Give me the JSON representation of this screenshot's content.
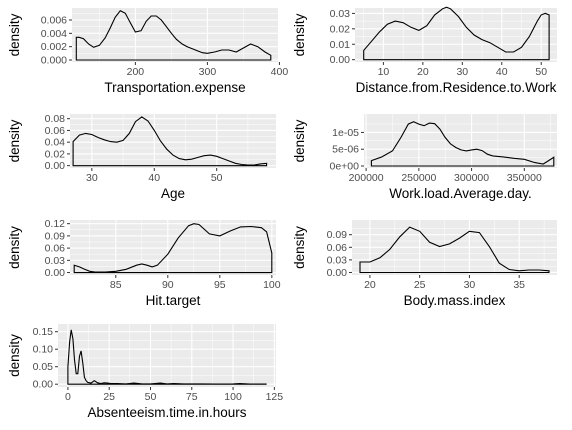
{
  "chart_data": [
    {
      "type": "area",
      "xlabel": "Transportation.expense",
      "ylabel": "density",
      "xlim": [
        112,
        398
      ],
      "ylim": [
        -0.0003,
        0.0078
      ],
      "xticks": [
        200,
        300,
        400
      ],
      "xtick_labels": [
        "200",
        "300",
        "400"
      ],
      "yticks": [
        0,
        0.002,
        0.004,
        0.006
      ],
      "ytick_labels": [
        "0.000",
        "0.002",
        "0.004",
        "0.006"
      ],
      "x": [
        118,
        122,
        128,
        135,
        142,
        150,
        158,
        165,
        172,
        179,
        186,
        193,
        200,
        208,
        215,
        222,
        229,
        236,
        243,
        250,
        257,
        265,
        272,
        279,
        286,
        293,
        300,
        310,
        320,
        330,
        340,
        350,
        360,
        370,
        380,
        388
      ],
      "y": [
        0.0034,
        0.0034,
        0.0032,
        0.0024,
        0.0019,
        0.0022,
        0.0033,
        0.0048,
        0.0064,
        0.0074,
        0.007,
        0.0056,
        0.0042,
        0.0044,
        0.0058,
        0.0066,
        0.0066,
        0.006,
        0.005,
        0.004,
        0.0031,
        0.0024,
        0.002,
        0.0017,
        0.0014,
        0.0011,
        0.001,
        0.0012,
        0.0015,
        0.0015,
        0.0012,
        0.0018,
        0.0024,
        0.002,
        0.0012,
        0.0007
      ],
      "grid": true
    },
    {
      "type": "area",
      "xlabel": "Distance.from.Residence.to.Work",
      "ylabel": "density",
      "xlim": [
        2.8,
        54
      ],
      "ylim": [
        -0.0015,
        0.0335
      ],
      "xticks": [
        10,
        20,
        30,
        40,
        50
      ],
      "xtick_labels": [
        "10",
        "20",
        "30",
        "40",
        "50"
      ],
      "yticks": [
        0,
        0.01,
        0.02,
        0.03
      ],
      "ytick_labels": [
        "0.00",
        "0.01",
        "0.02",
        "0.03"
      ],
      "x": [
        5,
        7,
        9,
        11,
        13,
        15,
        17,
        19,
        21,
        23,
        25,
        26,
        27,
        29,
        31,
        33,
        35,
        37,
        39,
        41,
        43,
        45,
        47,
        49,
        50,
        51,
        52
      ],
      "y": [
        0.006,
        0.012,
        0.018,
        0.023,
        0.025,
        0.024,
        0.021,
        0.019,
        0.022,
        0.029,
        0.033,
        0.034,
        0.033,
        0.028,
        0.021,
        0.016,
        0.013,
        0.011,
        0.008,
        0.005,
        0.005,
        0.008,
        0.015,
        0.025,
        0.029,
        0.03,
        0.029
      ],
      "grid": true
    },
    {
      "type": "area",
      "xlabel": "Age",
      "ylabel": "density",
      "xlim": [
        26.5,
        59.5
      ],
      "ylim": [
        -0.004,
        0.088
      ],
      "xticks": [
        30,
        40,
        50
      ],
      "xtick_labels": [
        "30",
        "40",
        "50"
      ],
      "yticks": [
        0,
        0.02,
        0.04,
        0.06,
        0.08
      ],
      "ytick_labels": [
        "0.00",
        "0.02",
        "0.04",
        "0.06",
        "0.08"
      ],
      "x": [
        27,
        28,
        29,
        30,
        31,
        32,
        33,
        34,
        35,
        36,
        37,
        38,
        39,
        40,
        41,
        42,
        43,
        44,
        45,
        46,
        47,
        48,
        49,
        50,
        51,
        52,
        53,
        54,
        55,
        56,
        57,
        58
      ],
      "y": [
        0.041,
        0.052,
        0.055,
        0.053,
        0.048,
        0.044,
        0.041,
        0.04,
        0.043,
        0.055,
        0.075,
        0.083,
        0.076,
        0.06,
        0.042,
        0.028,
        0.018,
        0.012,
        0.01,
        0.011,
        0.014,
        0.017,
        0.018,
        0.016,
        0.012,
        0.008,
        0.004,
        0.002,
        0.001,
        0.001,
        0.003,
        0.004
      ],
      "grid": true
    },
    {
      "type": "area",
      "xlabel": "Work.load.Average.day.",
      "ylabel": "density",
      "xlim": [
        198000,
        381000
      ],
      "ylim": [
        -6e-07,
        1.55e-05
      ],
      "xticks": [
        200000,
        250000,
        300000,
        350000
      ],
      "xtick_labels": [
        "200000",
        "250000",
        "300000",
        "350000"
      ],
      "yticks": [
        0,
        5e-06,
        1e-05
      ],
      "ytick_labels": [
        "0e+00",
        "5e-06",
        "1e-05"
      ],
      "x": [
        205000,
        215000,
        225000,
        233000,
        240000,
        245000,
        250000,
        255000,
        260000,
        265000,
        270000,
        275000,
        280000,
        285000,
        290000,
        295000,
        300000,
        305000,
        310000,
        315000,
        320000,
        330000,
        340000,
        350000,
        360000,
        368000,
        374000,
        378000
      ],
      "y": [
        1.6e-06,
        2.7e-06,
        4.5e-06,
        8.5e-06,
        1.25e-05,
        1.32e-05,
        1.25e-05,
        1.2e-05,
        1.28e-05,
        1.26e-05,
        1.1e-05,
        8.5e-06,
        6.6e-06,
        5.5e-06,
        4.8e-06,
        4.5e-06,
        4.8e-06,
        5e-06,
        4.6e-06,
        3.5e-06,
        3e-06,
        2.7e-06,
        2.3e-06,
        2e-06,
        1e-06,
        6e-07,
        1.8e-06,
        2.6e-06
      ],
      "grid": true
    },
    {
      "type": "area",
      "xlabel": "Hit.target",
      "ylabel": "density",
      "xlim": [
        80.6,
        100.4
      ],
      "ylim": [
        -0.006,
        0.129
      ],
      "xticks": [
        85,
        90,
        95,
        100
      ],
      "xtick_labels": [
        "85",
        "90",
        "95",
        "100"
      ],
      "yticks": [
        0,
        0.03,
        0.06,
        0.09,
        0.12
      ],
      "ytick_labels": [
        "0.00",
        "0.03",
        "0.06",
        "0.09",
        "0.12"
      ],
      "x": [
        81,
        81.5,
        82,
        82.5,
        83,
        84,
        85,
        86,
        87,
        87.5,
        88,
        88.5,
        89,
        90,
        91,
        92,
        92.5,
        93,
        94,
        95,
        96,
        97,
        98,
        99,
        99.5,
        100
      ],
      "y": [
        0.018,
        0.014,
        0.008,
        0.003,
        0.001,
        0.001,
        0.003,
        0.008,
        0.018,
        0.021,
        0.018,
        0.014,
        0.018,
        0.045,
        0.085,
        0.115,
        0.12,
        0.118,
        0.095,
        0.09,
        0.102,
        0.112,
        0.113,
        0.11,
        0.1,
        0.048
      ],
      "grid": true
    },
    {
      "type": "area",
      "xlabel": "Body.mass.index",
      "ylabel": "density",
      "xlim": [
        18.2,
        38.8
      ],
      "ylim": [
        -0.006,
        0.125
      ],
      "xticks": [
        20,
        25,
        30,
        35
      ],
      "xtick_labels": [
        "20",
        "25",
        "30",
        "35"
      ],
      "yticks": [
        0,
        0.03,
        0.06,
        0.09
      ],
      "ytick_labels": [
        "0.00",
        "0.03",
        "0.06",
        "0.09"
      ],
      "x": [
        19,
        20,
        21,
        22,
        23,
        24,
        25,
        26,
        27,
        28,
        29,
        30,
        31,
        32,
        33,
        34,
        35,
        36,
        37,
        38
      ],
      "y": [
        0.025,
        0.025,
        0.035,
        0.055,
        0.085,
        0.108,
        0.098,
        0.072,
        0.062,
        0.068,
        0.082,
        0.098,
        0.095,
        0.062,
        0.022,
        0.007,
        0.004,
        0.006,
        0.006,
        0.004
      ],
      "grid": true
    },
    {
      "type": "area",
      "xlabel": "Absenteeism.time.in.hours",
      "ylabel": "density",
      "xlim": [
        -6,
        126
      ],
      "ylim": [
        -0.008,
        0.172
      ],
      "xticks": [
        0,
        25,
        50,
        75,
        100,
        125
      ],
      "xtick_labels": [
        "0",
        "25",
        "50",
        "75",
        "100",
        "125"
      ],
      "yticks": [
        0,
        0.05,
        0.1,
        0.15
      ],
      "ytick_labels": [
        "0.00",
        "0.05",
        "0.10",
        "0.15"
      ],
      "x": [
        0,
        1,
        2,
        3,
        4,
        5,
        6,
        7,
        8,
        9,
        10,
        11,
        12,
        14,
        16,
        18,
        20,
        22,
        24,
        26,
        30,
        35,
        40,
        45,
        50,
        56,
        60,
        64,
        70,
        80,
        90,
        100,
        104,
        110,
        120
      ],
      "y": [
        0.05,
        0.12,
        0.155,
        0.13,
        0.07,
        0.03,
        0.03,
        0.08,
        0.095,
        0.06,
        0.02,
        0.01,
        0.005,
        0.003,
        0.01,
        0.004,
        0.002,
        0.004,
        0.003,
        0.002,
        0.002,
        0.001,
        0.003,
        0.001,
        0.001,
        0.003,
        0.001,
        0.002,
        0.0008,
        0.001,
        0.0005,
        0.0008,
        0.002,
        0.0004,
        0.0003
      ],
      "grid": true
    }
  ]
}
